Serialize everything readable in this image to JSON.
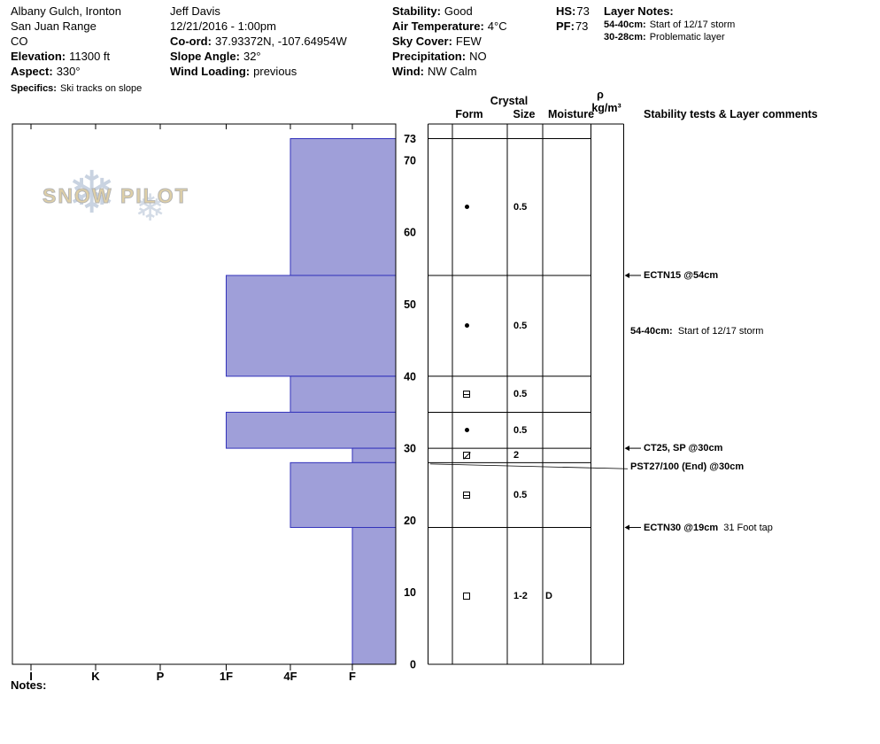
{
  "header": {
    "location": {
      "line1": "Albany Gulch, Ironton",
      "line2": "San Juan Range",
      "line3": "CO"
    },
    "elevation_label": "Elevation:",
    "elevation": "11300 ft",
    "aspect_label": "Aspect:",
    "aspect": "330°",
    "specifics_label": "Specifics:",
    "specifics": "Ski tracks on slope",
    "observer": "Jeff Davis",
    "datetime": "12/21/2016 - 1:00pm",
    "coord_label": "Co-ord:",
    "coord": "37.93372N, -107.64954W",
    "slope_angle_label": "Slope Angle:",
    "slope_angle": "32°",
    "wind_loading_label": "Wind Loading:",
    "wind_loading": "previous",
    "stability_label": "Stability:",
    "stability": "Good",
    "air_temp_label": "Air Temperature:",
    "air_temp": "4°C",
    "sky_label": "Sky Cover:",
    "sky": "FEW",
    "precip_label": "Precipitation:",
    "precip": "NO",
    "wind_label": "Wind:",
    "wind": "NW Calm",
    "hs_label": "HS:",
    "hs": "73",
    "pf_label": "PF:",
    "pf": "73",
    "layer_notes_title": "Layer Notes:",
    "layer_notes": [
      {
        "range": "54-40cm:",
        "text": "Start of 12/17 storm"
      },
      {
        "range": "30-28cm:",
        "text": "Problematic layer"
      }
    ]
  },
  "watermark": {
    "text": "SNOW PILOT"
  },
  "icons": {
    "snowflake": "❄"
  },
  "table_headers": {
    "crystal": "Crystal",
    "form": "Form",
    "size": "Size",
    "moisture": "Moisture",
    "rho": "ρ",
    "rho_units": "kg/m³",
    "stability": "Stability tests & Layer comments"
  },
  "notes_label": "Notes:",
  "chart_data": {
    "type": "bar",
    "orientation": "horizontal",
    "title": "Snow pit hardness profile",
    "depth_axis": {
      "unit": "cm",
      "max": 73,
      "ticks": [
        0,
        10,
        20,
        30,
        40,
        50,
        60,
        70,
        73
      ]
    },
    "hardness_axis": {
      "labels": [
        "I",
        "K",
        "P",
        "1F",
        "4F",
        "F"
      ]
    },
    "bar_fill": "#9f9fd9",
    "bar_stroke": "#3333bb",
    "layers": [
      {
        "top_cm": 73,
        "bottom_cm": 54,
        "hardness": "4F",
        "crystal_form": "dot",
        "crystal_size": "0.5",
        "moisture": ""
      },
      {
        "top_cm": 54,
        "bottom_cm": 40,
        "hardness": "1F",
        "crystal_form": "dot",
        "crystal_size": "0.5",
        "moisture": ""
      },
      {
        "top_cm": 40,
        "bottom_cm": 35,
        "hardness": "4F",
        "crystal_form": "square-minus",
        "crystal_size": "0.5",
        "moisture": ""
      },
      {
        "top_cm": 35,
        "bottom_cm": 30,
        "hardness": "1F",
        "crystal_form": "dot",
        "crystal_size": "0.5",
        "moisture": ""
      },
      {
        "top_cm": 30,
        "bottom_cm": 28,
        "hardness": "F",
        "crystal_form": "square-slash",
        "crystal_size": "2",
        "moisture": ""
      },
      {
        "top_cm": 28,
        "bottom_cm": 19,
        "hardness": "4F",
        "crystal_form": "square-minus",
        "crystal_size": "0.5",
        "moisture": ""
      },
      {
        "top_cm": 19,
        "bottom_cm": 0,
        "hardness": "F",
        "crystal_form": "square",
        "crystal_size": "1-2",
        "moisture": "D"
      }
    ],
    "annotations": [
      {
        "bold": "ECTN15 @54cm",
        "normal": "",
        "depth_cm": 54,
        "arrow": true,
        "leader": false
      },
      {
        "bold": "54-40cm:",
        "normal": "  Start of 12/17 storm",
        "depth_cm": 46.3,
        "arrow": false,
        "leader": false
      },
      {
        "bold": "CT25, SP @30cm",
        "normal": "",
        "depth_cm": 30,
        "arrow": true,
        "leader": false
      },
      {
        "bold": "PST27/100 (End) @30cm",
        "normal": "",
        "depth_cm": 27.4,
        "arrow": false,
        "leader": true
      },
      {
        "bold": "ECTN30 @19cm",
        "normal": "  31 Foot tap",
        "depth_cm": 19,
        "arrow": true,
        "leader": false
      }
    ]
  }
}
